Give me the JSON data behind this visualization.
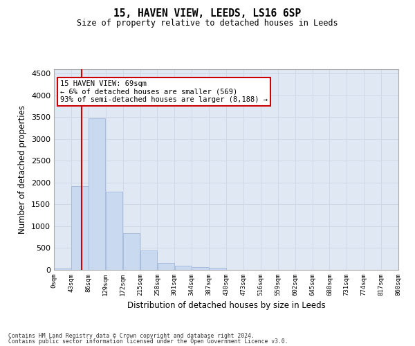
{
  "title": "15, HAVEN VIEW, LEEDS, LS16 6SP",
  "subtitle": "Size of property relative to detached houses in Leeds",
  "xlabel": "Distribution of detached houses by size in Leeds",
  "ylabel": "Number of detached properties",
  "annotation_line1": "15 HAVEN VIEW: 69sqm",
  "annotation_line2": "← 6% of detached houses are smaller (569)",
  "annotation_line3": "93% of semi-detached houses are larger (8,188) →",
  "bar_edges": [
    0,
    43,
    86,
    129,
    172,
    215,
    258,
    301,
    344,
    387,
    430,
    473,
    516,
    559,
    602,
    645,
    688,
    731,
    774,
    817,
    860
  ],
  "bar_heights": [
    30,
    1920,
    3480,
    1790,
    840,
    440,
    155,
    90,
    65,
    50,
    0,
    0,
    0,
    0,
    0,
    0,
    0,
    0,
    0,
    0
  ],
  "bar_color": "#c9d9f0",
  "bar_edge_color": "#a0b8d8",
  "vline_color": "#cc0000",
  "vline_x": 69,
  "ylim": [
    0,
    4600
  ],
  "yticks": [
    0,
    500,
    1000,
    1500,
    2000,
    2500,
    3000,
    3500,
    4000,
    4500
  ],
  "xtick_labels": [
    "0sqm",
    "43sqm",
    "86sqm",
    "129sqm",
    "172sqm",
    "215sqm",
    "258sqm",
    "301sqm",
    "344sqm",
    "387sqm",
    "430sqm",
    "473sqm",
    "516sqm",
    "559sqm",
    "602sqm",
    "645sqm",
    "688sqm",
    "731sqm",
    "774sqm",
    "817sqm",
    "860sqm"
  ],
  "grid_color": "#d0d8e8",
  "background_color": "#e0e8f4",
  "footer_line1": "Contains HM Land Registry data © Crown copyright and database right 2024.",
  "footer_line2": "Contains public sector information licensed under the Open Government Licence v3.0.",
  "annotation_box_color": "#ffffff",
  "annotation_box_edge": "#cc0000"
}
